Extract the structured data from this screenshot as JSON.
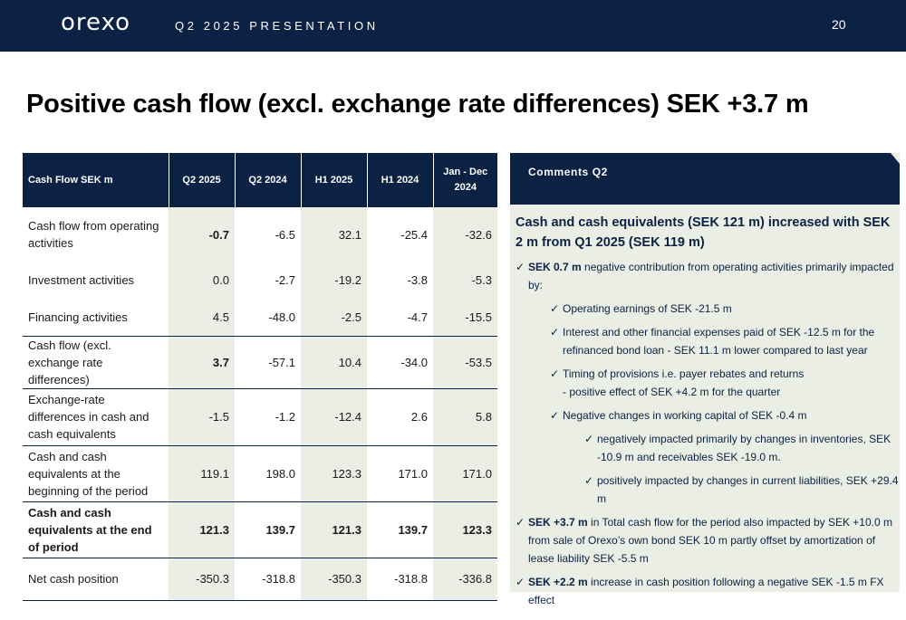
{
  "header": {
    "logo": "orexo",
    "subtitle": "Q2 2025 PRESENTATION",
    "page_number": "20",
    "background_color": "#0b2244"
  },
  "title": "Positive cash flow (excl. exchange rate differences) SEK +3.7 m",
  "table": {
    "columns": [
      "Cash Flow SEK m",
      "Q2 2025",
      "Q2 2024",
      "H1 2025",
      "H1 2024",
      "Jan - Dec 2024"
    ],
    "highlight_color": "#eaeee4",
    "rows": [
      {
        "label": "Cash flow from operating activities",
        "values": [
          "-0.7",
          "-6.5",
          "32.1",
          "-25.4",
          "-32.6"
        ]
      },
      {
        "label": "Investment activities",
        "values": [
          "0.0",
          "-2.7",
          "-19.2",
          "-3.8",
          "-5.3"
        ]
      },
      {
        "label": "Financing activities",
        "values": [
          "4.5",
          "-48.0",
          "-2.5",
          "-4.7",
          "-15.5"
        ]
      },
      {
        "label": "Cash flow (excl. exchange rate differences)",
        "values": [
          "3.7",
          "-57.1",
          "10.4",
          "-34.0",
          "-53.5"
        ]
      },
      {
        "label": "Exchange-rate differences in cash and cash equivalents",
        "values": [
          "-1.5",
          "-1.2",
          "-12.4",
          "2.6",
          "5.8"
        ]
      },
      {
        "label": "Cash and cash equivalents at the beginning of the period",
        "values": [
          "119.1",
          "198.0",
          "123.3",
          "171.0",
          "171.0"
        ]
      },
      {
        "label": "Cash and cash equivalents at the end of period",
        "values": [
          "121.3",
          "139.7",
          "121.3",
          "139.7",
          "123.3"
        ]
      },
      {
        "label": "Net cash position",
        "values": [
          "-350.3",
          "-318.8",
          "-350.3",
          "-318.8",
          "-336.8"
        ]
      }
    ]
  },
  "comments": {
    "header": "Comments Q2",
    "heading": "Cash and cash equivalents (SEK 121 m) increased with SEK 2 m from Q1 2025 (SEK 119 m)",
    "check_icon": "checkmark-icon",
    "b1_bold": "SEK 0.7 m",
    "b1_text": " negative contribution from operating activities primarily impacted by:",
    "b1_1": "Operating earnings of SEK -21.5 m",
    "b1_2": "Interest and other financial expenses paid of SEK -12.5 m for the refinanced bond loan - SEK 11.1 m lower compared to last year",
    "b1_3a": "Timing of provisions i.e. payer rebates and returns",
    "b1_3b": "- positive effect of SEK +4.2 m for the quarter",
    "b1_4": "Negative changes in working capital of SEK -0.4 m",
    "b1_4_1": "negatively impacted primarily by changes in inventories, SEK -10.9 m and receivables SEK -19.0 m.",
    "b1_4_2": "positively impacted by changes in current liabilities, SEK +29.4 m",
    "b2_bold": "SEK +3.7 m",
    "b2_text": " in Total cash flow for the period also impacted by SEK +10.0 m from sale of Orexo’s own bond SEK 10 m partly offset by amortization of lease liability SEK -5.5 m",
    "b3_bold": "SEK +2.2 m",
    "b3_text": " increase in cash position following a negative SEK -1.5 m FX effect"
  }
}
